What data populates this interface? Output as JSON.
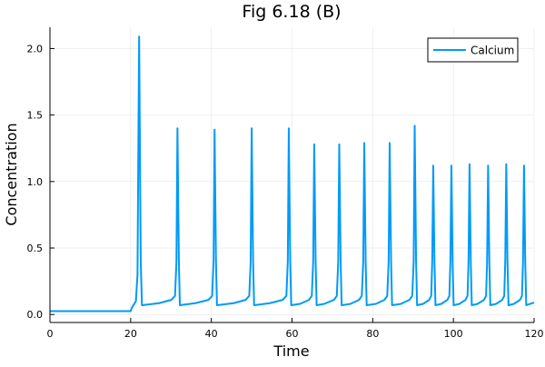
{
  "chart_data": {
    "type": "line",
    "title": "Fig 6.18 (B)",
    "xlabel": "Time",
    "ylabel": "Concentration",
    "xlim": [
      0,
      120
    ],
    "ylim": [
      -0.06,
      2.16
    ],
    "xticks": [
      0,
      20,
      40,
      60,
      80,
      100,
      120
    ],
    "xtick_labels": [
      "0",
      "20",
      "40",
      "60",
      "80",
      "100",
      "120"
    ],
    "yticks": [
      0,
      0.5,
      1.0,
      1.5,
      2.0
    ],
    "ytick_labels": [
      "0.0",
      "0.5",
      "1.0",
      "1.5",
      "2.0"
    ],
    "grid": true,
    "legend_position": "top-right",
    "series": [
      {
        "name": "Calcium",
        "color": "#009af9",
        "points": [
          [
            0,
            0.025
          ],
          [
            20,
            0.025
          ],
          [
            20.3,
            0.05
          ],
          [
            21.3,
            0.1
          ],
          [
            21.7,
            0.3
          ],
          [
            22.1,
            2.09
          ],
          [
            22.5,
            0.4
          ],
          [
            22.8,
            0.07
          ],
          [
            27,
            0.085
          ],
          [
            30.1,
            0.11
          ],
          [
            31.0,
            0.14
          ],
          [
            31.35,
            0.4
          ],
          [
            31.6,
            1.4
          ],
          [
            31.95,
            0.4
          ],
          [
            32.2,
            0.07
          ],
          [
            36,
            0.085
          ],
          [
            39.3,
            0.11
          ],
          [
            40.2,
            0.14
          ],
          [
            40.55,
            0.4
          ],
          [
            40.8,
            1.39
          ],
          [
            41.15,
            0.4
          ],
          [
            41.4,
            0.07
          ],
          [
            45.5,
            0.085
          ],
          [
            48.5,
            0.11
          ],
          [
            49.4,
            0.14
          ],
          [
            49.75,
            0.4
          ],
          [
            50.0,
            1.4
          ],
          [
            50.35,
            0.4
          ],
          [
            50.6,
            0.07
          ],
          [
            54.5,
            0.085
          ],
          [
            57.7,
            0.11
          ],
          [
            58.6,
            0.14
          ],
          [
            58.95,
            0.4
          ],
          [
            59.2,
            1.4
          ],
          [
            59.55,
            0.4
          ],
          [
            59.8,
            0.07
          ],
          [
            62,
            0.08
          ],
          [
            64.2,
            0.11
          ],
          [
            64.9,
            0.14
          ],
          [
            65.25,
            0.4
          ],
          [
            65.5,
            1.28
          ],
          [
            65.85,
            0.4
          ],
          [
            66.1,
            0.07
          ],
          [
            68,
            0.08
          ],
          [
            70.4,
            0.11
          ],
          [
            71.1,
            0.14
          ],
          [
            71.45,
            0.4
          ],
          [
            71.7,
            1.28
          ],
          [
            72.05,
            0.4
          ],
          [
            72.3,
            0.07
          ],
          [
            74.5,
            0.08
          ],
          [
            76.6,
            0.11
          ],
          [
            77.3,
            0.14
          ],
          [
            77.65,
            0.4
          ],
          [
            77.9,
            1.29
          ],
          [
            78.25,
            0.4
          ],
          [
            78.5,
            0.07
          ],
          [
            80.8,
            0.08
          ],
          [
            82.9,
            0.11
          ],
          [
            83.6,
            0.14
          ],
          [
            83.95,
            0.4
          ],
          [
            84.2,
            1.29
          ],
          [
            84.55,
            0.4
          ],
          [
            84.8,
            0.07
          ],
          [
            87,
            0.08
          ],
          [
            89.1,
            0.11
          ],
          [
            89.8,
            0.14
          ],
          [
            90.15,
            0.4
          ],
          [
            90.4,
            1.42
          ],
          [
            90.75,
            0.4
          ],
          [
            91.0,
            0.07
          ],
          [
            92.5,
            0.08
          ],
          [
            94.0,
            0.11
          ],
          [
            94.5,
            0.14
          ],
          [
            94.75,
            0.4
          ],
          [
            95.0,
            1.12
          ],
          [
            95.3,
            0.4
          ],
          [
            95.55,
            0.07
          ],
          [
            97,
            0.08
          ],
          [
            98.5,
            0.11
          ],
          [
            99.0,
            0.14
          ],
          [
            99.25,
            0.4
          ],
          [
            99.5,
            1.12
          ],
          [
            99.8,
            0.4
          ],
          [
            100.05,
            0.07
          ],
          [
            101.5,
            0.08
          ],
          [
            103.0,
            0.11
          ],
          [
            103.5,
            0.14
          ],
          [
            103.75,
            0.4
          ],
          [
            104.0,
            1.13
          ],
          [
            104.3,
            0.4
          ],
          [
            104.55,
            0.07
          ],
          [
            106,
            0.08
          ],
          [
            107.6,
            0.11
          ],
          [
            108.1,
            0.14
          ],
          [
            108.35,
            0.4
          ],
          [
            108.6,
            1.12
          ],
          [
            108.9,
            0.4
          ],
          [
            109.15,
            0.07
          ],
          [
            110.6,
            0.08
          ],
          [
            112.1,
            0.11
          ],
          [
            112.6,
            0.14
          ],
          [
            112.85,
            0.4
          ],
          [
            113.1,
            1.13
          ],
          [
            113.4,
            0.4
          ],
          [
            113.65,
            0.07
          ],
          [
            115,
            0.08
          ],
          [
            116.5,
            0.11
          ],
          [
            117.0,
            0.14
          ],
          [
            117.25,
            0.4
          ],
          [
            117.5,
            1.12
          ],
          [
            117.8,
            0.4
          ],
          [
            118.05,
            0.07
          ],
          [
            120,
            0.09
          ]
        ]
      }
    ]
  }
}
